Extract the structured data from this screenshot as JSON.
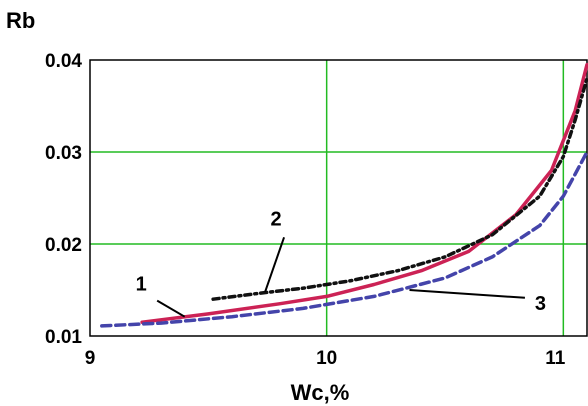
{
  "chart_data": {
    "type": "line",
    "title": "",
    "xlabel": "Wc,%",
    "ylabel": "Rb",
    "xlim": [
      9,
      11.1
    ],
    "ylim": [
      0.01,
      0.04
    ],
    "grid": true,
    "grid_color": "#22bb22",
    "x_ticks": [
      9,
      10,
      11
    ],
    "x_tick_labels": [
      "9",
      "10",
      "11"
    ],
    "y_ticks": [
      0.01,
      0.02,
      0.03,
      0.04
    ],
    "y_tick_labels": [
      "0.01",
      "0.02",
      "0.03",
      "0.04"
    ],
    "series": [
      {
        "name": "1",
        "color": "#cc2255",
        "style": "solid",
        "x": [
          9.22,
          9.5,
          9.8,
          10.0,
          10.2,
          10.4,
          10.6,
          10.8,
          10.95,
          11.05,
          11.1
        ],
        "y": [
          0.0115,
          0.0124,
          0.0135,
          0.0143,
          0.0156,
          0.0171,
          0.0192,
          0.0232,
          0.028,
          0.0345,
          0.0395
        ]
      },
      {
        "name": "2",
        "color": "#111111",
        "style": "dashdot",
        "x": [
          9.52,
          9.7,
          9.9,
          10.1,
          10.3,
          10.5,
          10.7,
          10.9,
          11.0,
          11.05,
          11.1
        ],
        "y": [
          0.014,
          0.0146,
          0.0152,
          0.016,
          0.0171,
          0.0186,
          0.021,
          0.0252,
          0.0295,
          0.0335,
          0.038
        ]
      },
      {
        "name": "3",
        "color": "#4444aa",
        "style": "dashed",
        "x": [
          9.05,
          9.3,
          9.6,
          9.9,
          10.2,
          10.5,
          10.7,
          10.9,
          11.0,
          11.1
        ],
        "y": [
          0.0111,
          0.0114,
          0.0121,
          0.013,
          0.0143,
          0.0163,
          0.0186,
          0.022,
          0.0252,
          0.03
        ]
      }
    ],
    "annotations": [
      {
        "text": "1",
        "x": 9.25,
        "y": 0.0145,
        "target_x": 9.4,
        "target_y": 0.0121
      },
      {
        "text": "2",
        "x": 9.82,
        "y": 0.0216,
        "target_x": 9.74,
        "target_y": 0.0148
      },
      {
        "text": "3",
        "x": 10.88,
        "y": 0.0135,
        "target_x": 10.35,
        "target_y": 0.015
      }
    ]
  }
}
